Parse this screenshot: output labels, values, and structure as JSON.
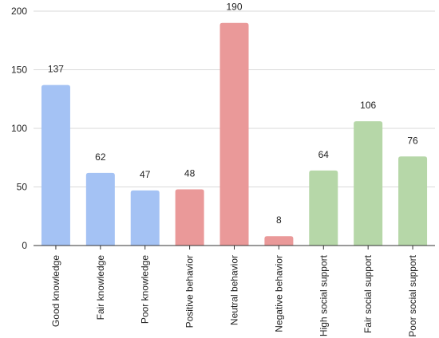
{
  "chart_data": {
    "type": "bar",
    "title": "",
    "xlabel": "",
    "ylabel": "",
    "ylim": [
      0,
      200
    ],
    "yticks": [
      0,
      50,
      100,
      150,
      200
    ],
    "grid": true,
    "categories": [
      "Good knowledge",
      "Fair knowledge",
      "Poor knowledge",
      "Positive behavior",
      "Neutral behavior",
      "Negative behavior",
      "High social support",
      "Fair social support",
      "Poor social support"
    ],
    "values": [
      137,
      62,
      47,
      48,
      190,
      8,
      64,
      106,
      76
    ],
    "colors": [
      "#a4c2f4",
      "#a4c2f4",
      "#a4c2f4",
      "#ea9999",
      "#ea9999",
      "#ea9999",
      "#b6d7a8",
      "#b6d7a8",
      "#b6d7a8"
    ]
  }
}
